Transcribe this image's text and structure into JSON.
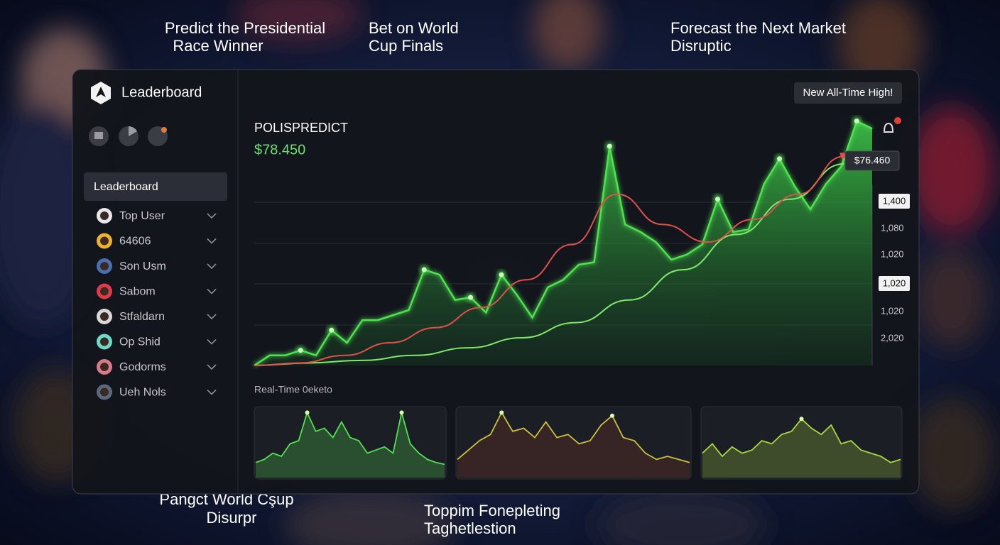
{
  "captions": [
    {
      "lines": [
        "Predict the Presidential",
        "Race Winner"
      ]
    },
    {
      "lines": [
        "Bet on World",
        "Cup Finals"
      ]
    },
    {
      "lines": [
        "Forecast the Next Market",
        "Disruptic"
      ]
    },
    {
      "lines": [
        "Pangct World Cşup",
        "Disurpr"
      ]
    },
    {
      "lines": [
        "Toppim Fonepleting",
        "Taghetlestion"
      ]
    }
  ],
  "sidebar": {
    "title": "Leaderboard",
    "active": "Leaderboard",
    "items": [
      "Top User",
      "64606",
      "Son Usm",
      "Sabom",
      "Stfaldarn",
      "Op Shid",
      "Godorms",
      "Ueh Nols"
    ]
  },
  "badge": "New All-Time High!",
  "chart": {
    "type": "line",
    "title": "POLISPREDICT",
    "value": "$78.450",
    "tag": "$76.460",
    "axis_labels": [
      "1,400",
      "1,080",
      "1,020",
      "1,020",
      "1,020",
      "2,020"
    ],
    "ylim": [
      0,
      100
    ],
    "series": [
      {
        "color": "#4fe34f",
        "values": [
          0,
          4,
          4,
          6,
          4,
          14,
          9,
          18,
          18,
          20,
          22,
          38,
          36,
          26,
          27,
          21,
          36,
          28,
          19,
          31,
          34,
          40,
          41,
          87,
          56,
          53,
          49,
          42,
          44,
          48,
          66,
          53,
          54,
          72,
          82,
          71,
          62,
          72,
          79,
          97,
          94
        ]
      },
      {
        "color": "#e0504a",
        "values": [
          0,
          1,
          4,
          9,
          15,
          23,
          34,
          48,
          68,
          56,
          49,
          58,
          68,
          83
        ]
      },
      {
        "color": "#7ee86a",
        "values": [
          0,
          1,
          2,
          4,
          7,
          11,
          17,
          26,
          38,
          52,
          66,
          80
        ]
      }
    ]
  },
  "realtime": {
    "label": "Real-Time 0eketo",
    "charts": [
      {
        "color": "#52e052",
        "values": [
          15,
          20,
          30,
          25,
          45,
          50,
          95,
          65,
          70,
          55,
          80,
          55,
          50,
          30,
          35,
          40,
          30,
          95,
          45,
          30,
          20,
          15,
          12
        ]
      },
      {
        "color": "#c9c23a",
        "values": [
          20,
          35,
          50,
          60,
          95,
          65,
          70,
          55,
          80,
          55,
          60,
          45,
          50,
          75,
          90,
          55,
          50,
          30,
          20,
          25,
          20,
          15
        ]
      },
      {
        "color": "#a8d840",
        "values": [
          30,
          45,
          25,
          40,
          30,
          35,
          50,
          45,
          60,
          65,
          85,
          70,
          60,
          75,
          45,
          50,
          35,
          30,
          25,
          15,
          20
        ]
      }
    ]
  }
}
